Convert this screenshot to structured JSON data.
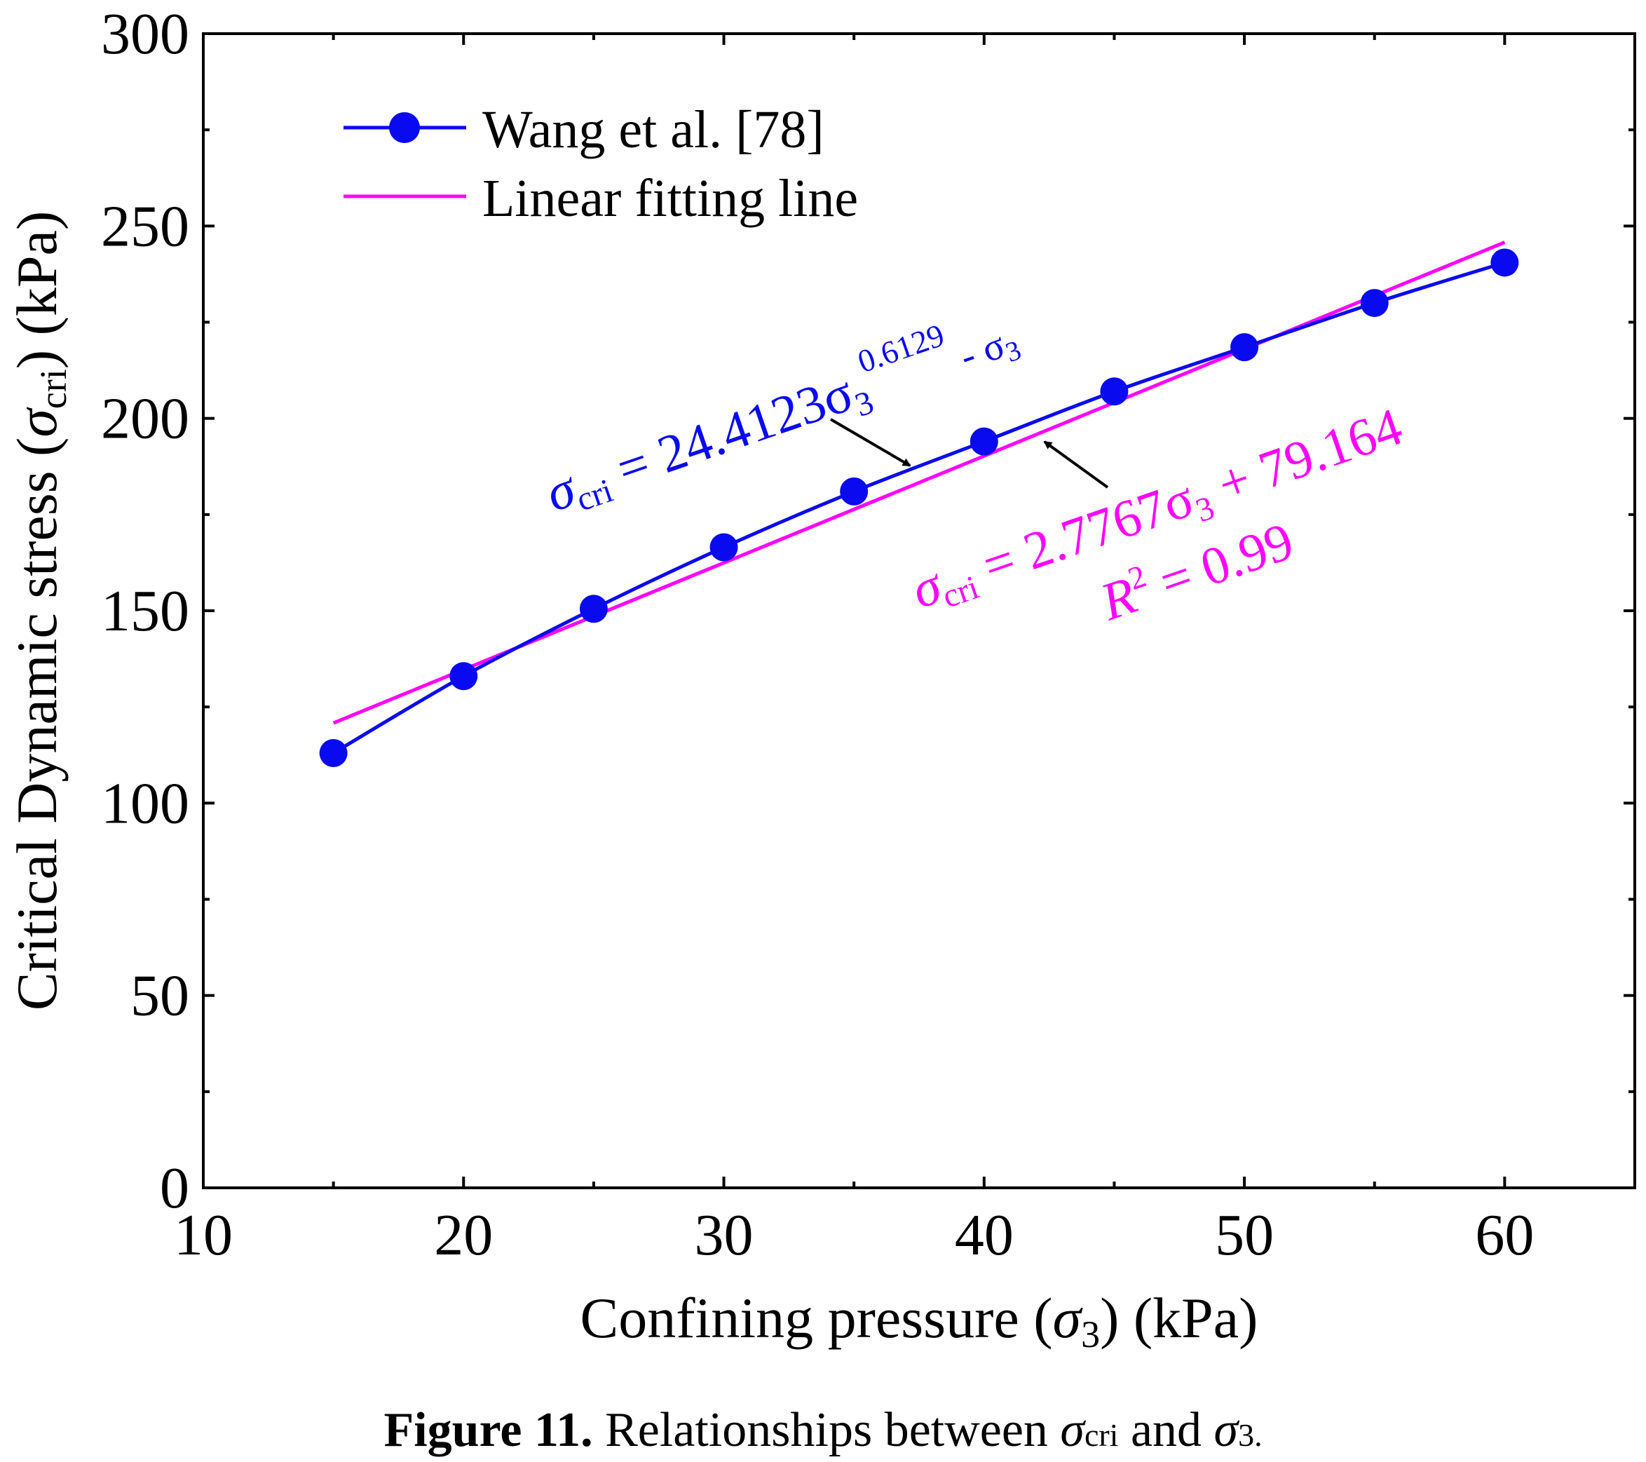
{
  "chart_data": {
    "type": "line",
    "xlabel": {
      "prefix": "Confining pressure (",
      "symbol": "σ",
      "sub": "3",
      "suffix": ") (kPa)"
    },
    "ylabel": {
      "prefix": "Critical Dynamic stress (",
      "symbol": "σ",
      "sub": "cri",
      "suffix": ") (kPa)"
    },
    "xlim": [
      10,
      65
    ],
    "ylim": [
      0,
      300
    ],
    "x_ticks": [
      10,
      20,
      30,
      40,
      50,
      60
    ],
    "y_ticks": [
      0,
      50,
      100,
      150,
      200,
      250,
      300
    ],
    "legend_position": "top-left",
    "series": [
      {
        "name": "Wang et al. [78]",
        "color": "#0a0af0",
        "marker": "circle",
        "x": [
          15,
          20,
          25,
          30,
          35,
          40,
          45,
          50,
          55,
          60
        ],
        "y": [
          113,
          133,
          150.5,
          166.5,
          181,
          194,
          207,
          218.5,
          230,
          240.5
        ]
      },
      {
        "name": "Linear fitting line",
        "color": "#ff00ff",
        "marker": "none",
        "slope": 2.7767,
        "intercept": 79.164,
        "x_range": [
          15,
          60
        ]
      }
    ],
    "annotations": {
      "power_fit": {
        "symbol": "σ",
        "sub": "cri",
        "eq": " = 24.4123σ",
        "sub3": "3",
        "exp": "0.6129",
        "tail": " - σ",
        "tail_sub": "3"
      },
      "linear_fit": {
        "symbol": "σ",
        "sub": "cri",
        "eq": " = 2.7767σ",
        "sub3": "3",
        "tail": " + 79.164"
      },
      "r2": {
        "label": "R",
        "sup": "2",
        "value": " = 0.99"
      }
    }
  },
  "caption": {
    "bold": "Figure 11.",
    "text": " Relationships between ",
    "sym1": "σ",
    "sub1": "cri",
    "and": " and ",
    "sym2": "σ",
    "sub2": "3."
  }
}
